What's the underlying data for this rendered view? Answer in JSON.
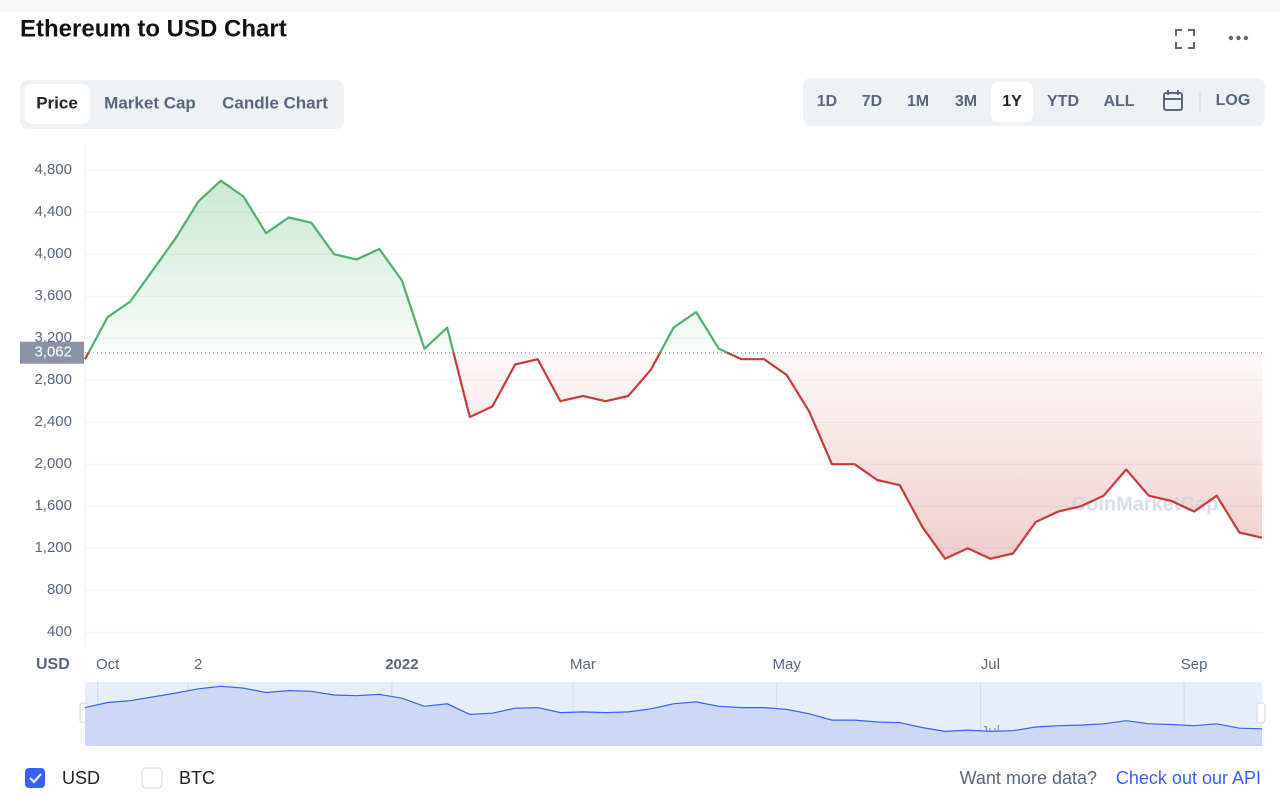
{
  "ui": {
    "title": "Ethereum to USD Chart",
    "tabs": [
      "Price",
      "Market Cap",
      "Candle Chart"
    ],
    "ranges": [
      "1D",
      "7D",
      "1M",
      "3M",
      "1Y",
      "YTD",
      "ALL"
    ],
    "log": "LOG",
    "currencies": [
      "USD",
      "BTC"
    ],
    "more_text": "Want more data?",
    "api_link": "Check out our API",
    "watermark": "CoinMarketCap"
  },
  "chart_data": {
    "type": "line",
    "y_label": "USD",
    "categories": [
      null,
      "Oct",
      null,
      null,
      null,
      "2",
      null,
      null,
      null,
      null,
      null,
      null,
      null,
      null,
      "2022",
      null,
      null,
      null,
      null,
      null,
      null,
      null,
      "Mar",
      null,
      null,
      null,
      null,
      null,
      null,
      null,
      null,
      "May",
      null,
      null,
      null,
      null,
      null,
      null,
      null,
      null,
      "Jul",
      null,
      null,
      null,
      null,
      null,
      null,
      null,
      null,
      "Sep",
      null,
      null,
      null
    ],
    "values": [
      3000,
      3400,
      3550,
      3850,
      4150,
      4500,
      4700,
      4550,
      4200,
      4350,
      4300,
      4000,
      3950,
      4050,
      3750,
      3100,
      3300,
      2450,
      2550,
      2950,
      3000,
      2600,
      2650,
      2600,
      2650,
      2900,
      3300,
      3450,
      3100,
      3000,
      3000,
      2850,
      2500,
      2000,
      2000,
      1850,
      1800,
      1400,
      1100,
      1200,
      1100,
      1150,
      1450,
      1550,
      1600,
      1700,
      1950,
      1700,
      1650,
      1550,
      1700,
      1350,
      1300
    ],
    "reference": {
      "value": 3062,
      "label": "3,062"
    },
    "up_color": "#4fb06d",
    "down_color": "#c83b3b",
    "ylim": [
      250,
      5040
    ],
    "yticks": [
      400,
      800,
      {
        "value": 1200,
        "label": "1,200"
      },
      {
        "value": 1600,
        "label": "1,600"
      },
      {
        "value": 2000,
        "label": "2,000"
      },
      {
        "value": 2400,
        "label": "2,400"
      },
      {
        "value": 2800,
        "label": "2,800"
      },
      {
        "value": 3200,
        "label": "3,200"
      },
      {
        "value": 3600,
        "label": "3,600"
      },
      {
        "value": 4000,
        "label": "4,000"
      },
      {
        "value": 4400,
        "label": "4,400"
      },
      {
        "value": 4800,
        "label": "4,800"
      }
    ],
    "grid": true
  }
}
